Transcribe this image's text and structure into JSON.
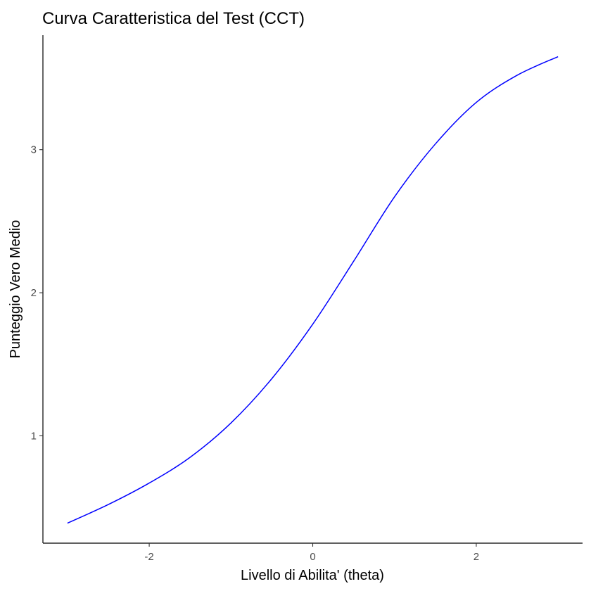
{
  "chart_data": {
    "type": "line",
    "title": "Curva Caratteristica del Test (CCT)",
    "xlabel": "Livello di Abilita' (theta)",
    "ylabel": "Punteggio Vero Medio",
    "xlim": [
      -3.3,
      3.3
    ],
    "ylim": [
      0.25,
      3.8
    ],
    "xticks": [
      -2,
      0,
      2
    ],
    "xtick_labels": [
      "-2",
      "0",
      "2"
    ],
    "yticks": [
      1,
      2,
      3
    ],
    "ytick_labels": [
      "1",
      "2",
      "3"
    ],
    "grid": false,
    "legend": "none",
    "series": [
      {
        "color": "#0000ff",
        "x": [
          -3.0,
          -2.5,
          -2.0,
          -1.5,
          -1.0,
          -0.5,
          0.0,
          0.5,
          1.0,
          1.5,
          2.0,
          2.5,
          3.0
        ],
        "y": [
          0.39,
          0.52,
          0.67,
          0.85,
          1.09,
          1.4,
          1.78,
          2.22,
          2.67,
          3.04,
          3.33,
          3.52,
          3.65
        ]
      }
    ]
  }
}
